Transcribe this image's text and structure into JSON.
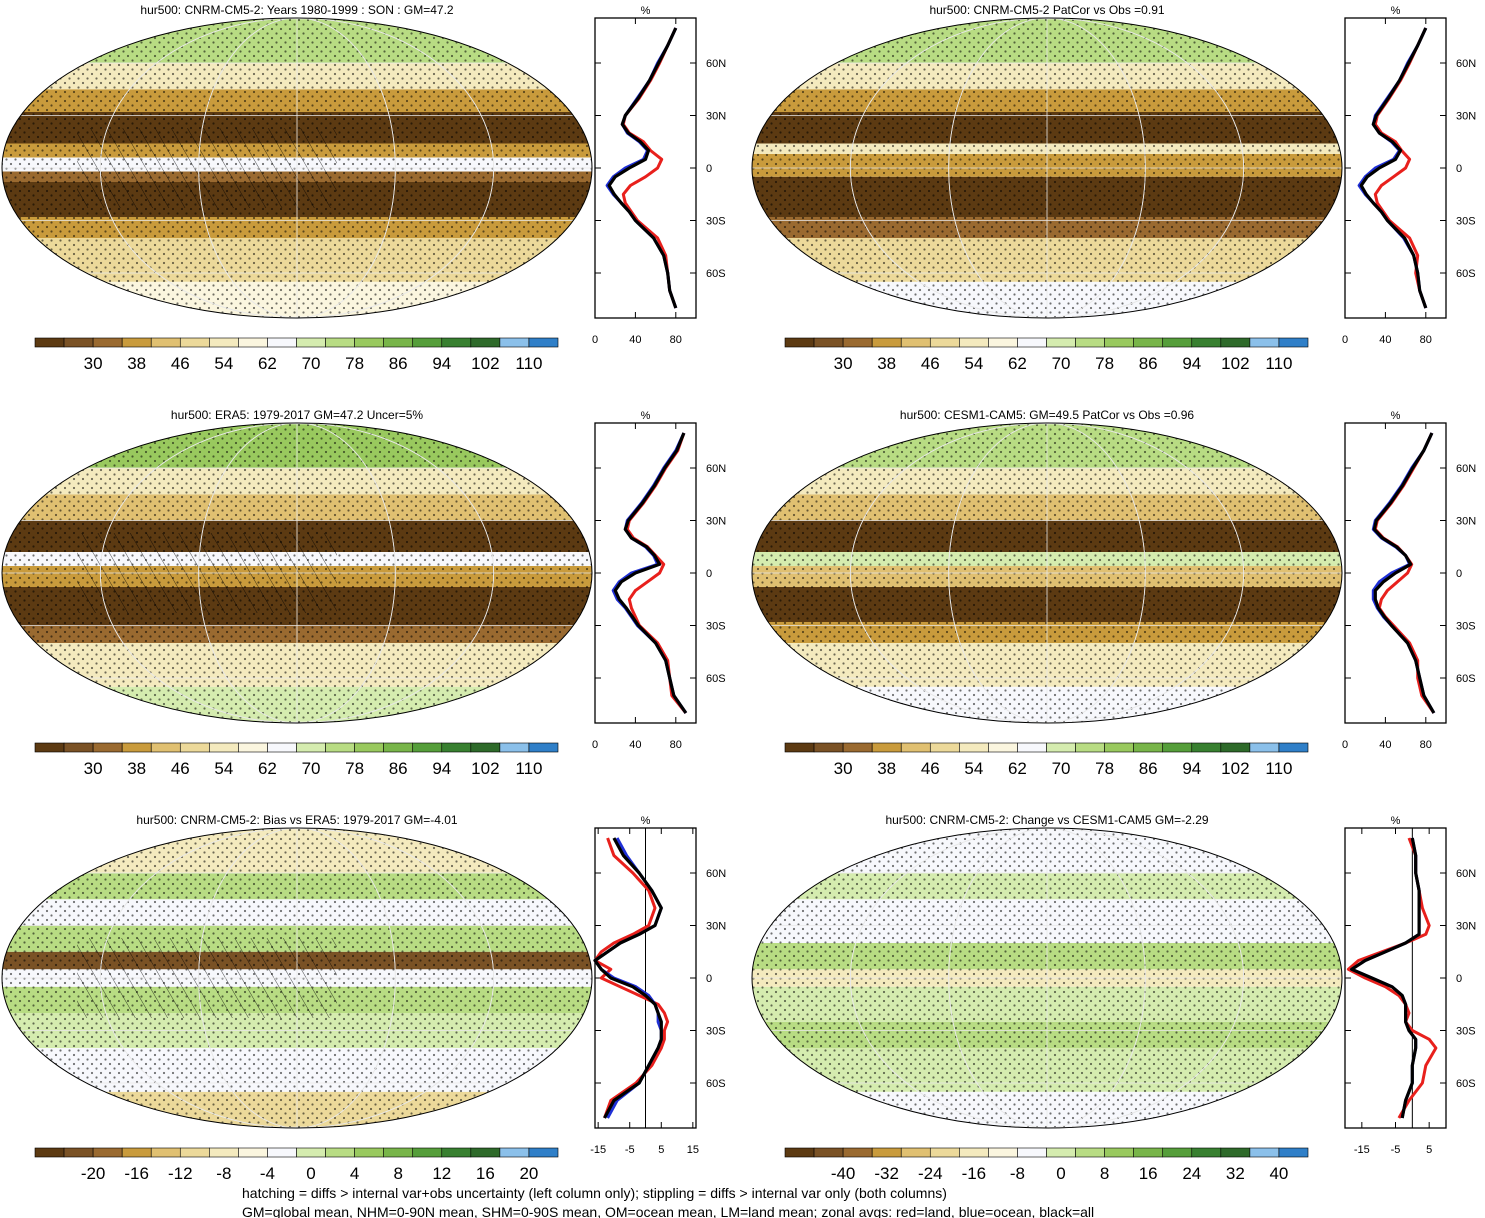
{
  "figure": {
    "footer": [
      "hatching = diffs > internal var+obs uncertainty (left column only); stippling = diffs > internal var only (both columns)",
      "GM=global mean, NHM=0-90N mean, SHM=0-90S mean, OM=ocean mean, LM=land mean; zonal avgs: red=land, blue=ocean, black=all"
    ]
  },
  "colors": {
    "land": "#e8201c",
    "ocean": "#1f2fd6",
    "all": "#000000",
    "colorbar": [
      "#5c3a12",
      "#7a5225",
      "#9a6a30",
      "#c99b3c",
      "#e0c071",
      "#ecd99a",
      "#f4eabe",
      "#fbf6df",
      "#f7f8fc",
      "#d5ecaf",
      "#b8dc83",
      "#99c95e",
      "#78b549",
      "#559e3a",
      "#388030",
      "#2e6a2a",
      "#8bc0ea",
      "#2f7fc8"
    ]
  },
  "panels": [
    {
      "title": "hur500: CNRM-CM5-2: Years 1980-1999 : SON : GM=47.2",
      "colorbar_labels": [
        "30",
        "38",
        "46",
        "54",
        "62",
        "70",
        "78",
        "86",
        "94",
        "102",
        "110"
      ],
      "zonal_unit": "%",
      "zonal_xticks": [
        "0",
        "40",
        "80"
      ]
    },
    {
      "title": "hur500: CNRM-CM5-2 PatCor vs Obs =0.91",
      "colorbar_labels": [
        "30",
        "38",
        "46",
        "54",
        "62",
        "70",
        "78",
        "86",
        "94",
        "102",
        "110"
      ],
      "zonal_unit": "%",
      "zonal_xticks": [
        "0",
        "40",
        "80"
      ]
    },
    {
      "title": "hur500: ERA5: 1979-2017 GM=47.2 Uncer=5%",
      "colorbar_labels": [
        "30",
        "38",
        "46",
        "54",
        "62",
        "70",
        "78",
        "86",
        "94",
        "102",
        "110"
      ],
      "zonal_unit": "%",
      "zonal_xticks": [
        "0",
        "40",
        "80"
      ]
    },
    {
      "title": "hur500: CESM1-CAM5: GM=49.5 PatCor vs Obs =0.96",
      "colorbar_labels": [
        "30",
        "38",
        "46",
        "54",
        "62",
        "70",
        "78",
        "86",
        "94",
        "102",
        "110"
      ],
      "zonal_unit": "%",
      "zonal_xticks": [
        "0",
        "40",
        "80"
      ]
    },
    {
      "title": "hur500: CNRM-CM5-2: Bias vs ERA5: 1979-2017  GM=-4.01",
      "colorbar_labels": [
        "-20",
        "-16",
        "-12",
        "-8",
        "-4",
        "0",
        "4",
        "8",
        "12",
        "16",
        "20"
      ],
      "zonal_unit": "%",
      "zonal_xticks": [
        "-15",
        "-5",
        "5",
        "15"
      ]
    },
    {
      "title": "hur500: CNRM-CM5-2: Change vs CESM1-CAM5 GM=-2.29",
      "colorbar_labels": [
        "-40",
        "-32",
        "-24",
        "-16",
        "-8",
        "0",
        "8",
        "16",
        "24",
        "32",
        "40"
      ],
      "zonal_unit": "%",
      "zonal_xticks": [
        "-15",
        "-5",
        "5"
      ]
    }
  ],
  "chart_data": [
    {
      "type": "line",
      "title": "hur500: CNRM-CM5-2: Years 1980-1999 : SON : GM=47.2",
      "xlabel": "%",
      "ylabel": "",
      "xlim": [
        0,
        100
      ],
      "ylim": [
        -85,
        85
      ],
      "y_ticks": [
        "60N",
        "30N",
        "0",
        "30S",
        "60S"
      ],
      "x_ticks": [
        0,
        40,
        80
      ],
      "lat": [
        80,
        70,
        60,
        50,
        40,
        30,
        25,
        20,
        15,
        10,
        5,
        0,
        -5,
        -10,
        -15,
        -20,
        -25,
        -30,
        -40,
        -50,
        -60,
        -70,
        -80
      ],
      "series": [
        {
          "name": "land",
          "values": [
            80,
            72,
            64,
            55,
            44,
            30,
            28,
            34,
            48,
            55,
            66,
            62,
            50,
            35,
            28,
            30,
            36,
            42,
            62,
            70,
            72,
            74,
            80
          ]
        },
        {
          "name": "ocean",
          "values": [
            80,
            72,
            62,
            54,
            42,
            30,
            27,
            32,
            44,
            52,
            48,
            30,
            18,
            12,
            18,
            26,
            34,
            40,
            58,
            68,
            72,
            74,
            80
          ]
        },
        {
          "name": "all",
          "values": [
            80,
            72,
            63,
            54,
            43,
            30,
            27,
            33,
            45,
            53,
            50,
            34,
            20,
            14,
            19,
            26,
            34,
            40,
            58,
            68,
            72,
            74,
            80
          ]
        }
      ]
    },
    {
      "type": "line",
      "title": "hur500: CNRM-CM5-2 PatCor vs Obs =0.91",
      "xlabel": "%",
      "ylabel": "",
      "xlim": [
        0,
        100
      ],
      "ylim": [
        -85,
        85
      ],
      "y_ticks": [
        "60N",
        "30N",
        "0",
        "30S",
        "60S"
      ],
      "x_ticks": [
        0,
        40,
        80
      ],
      "lat": [
        80,
        70,
        60,
        50,
        40,
        30,
        25,
        20,
        15,
        10,
        5,
        0,
        -5,
        -10,
        -15,
        -20,
        -25,
        -30,
        -40,
        -50,
        -60,
        -70,
        -80
      ],
      "series": [
        {
          "name": "land",
          "values": [
            80,
            72,
            64,
            55,
            44,
            32,
            30,
            36,
            50,
            56,
            64,
            60,
            48,
            36,
            30,
            32,
            38,
            44,
            64,
            72,
            70,
            74,
            80
          ]
        },
        {
          "name": "ocean",
          "values": [
            80,
            72,
            62,
            54,
            42,
            30,
            28,
            34,
            46,
            54,
            48,
            30,
            20,
            14,
            20,
            28,
            36,
            42,
            58,
            68,
            72,
            74,
            80
          ]
        },
        {
          "name": "all",
          "values": [
            80,
            72,
            63,
            54,
            43,
            31,
            28,
            34,
            47,
            55,
            50,
            34,
            22,
            16,
            21,
            28,
            36,
            42,
            59,
            68,
            72,
            74,
            80
          ]
        }
      ]
    },
    {
      "type": "line",
      "title": "hur500: ERA5: 1979-2017 GM=47.2 Uncer=5%",
      "xlabel": "%",
      "ylabel": "",
      "xlim": [
        0,
        100
      ],
      "ylim": [
        -85,
        85
      ],
      "y_ticks": [
        "60N",
        "30N",
        "0",
        "30S",
        "60S"
      ],
      "x_ticks": [
        0,
        40,
        80
      ],
      "lat": [
        80,
        70,
        60,
        50,
        40,
        30,
        25,
        20,
        15,
        10,
        5,
        0,
        -5,
        -10,
        -15,
        -20,
        -25,
        -30,
        -40,
        -50,
        -60,
        -70,
        -80
      ],
      "series": [
        {
          "name": "land",
          "values": [
            88,
            82,
            70,
            60,
            48,
            34,
            32,
            38,
            52,
            60,
            68,
            64,
            52,
            40,
            34,
            36,
            40,
            44,
            62,
            72,
            74,
            76,
            90
          ]
        },
        {
          "name": "ocean",
          "values": [
            88,
            80,
            68,
            58,
            46,
            32,
            30,
            36,
            50,
            58,
            62,
            36,
            24,
            18,
            22,
            30,
            36,
            42,
            60,
            70,
            74,
            78,
            90
          ]
        },
        {
          "name": "all",
          "values": [
            88,
            81,
            69,
            59,
            47,
            33,
            30,
            36,
            51,
            59,
            64,
            40,
            26,
            20,
            24,
            31,
            37,
            43,
            60,
            70,
            74,
            78,
            90
          ]
        }
      ]
    },
    {
      "type": "line",
      "title": "hur500: CESM1-CAM5: GM=49.5 PatCor vs Obs =0.96",
      "xlabel": "%",
      "ylabel": "",
      "xlim": [
        0,
        100
      ],
      "ylim": [
        -85,
        85
      ],
      "y_ticks": [
        "60N",
        "30N",
        "0",
        "30S",
        "60S"
      ],
      "x_ticks": [
        0,
        40,
        80
      ],
      "lat": [
        80,
        70,
        60,
        50,
        40,
        30,
        25,
        20,
        15,
        10,
        5,
        0,
        -5,
        -10,
        -15,
        -20,
        -25,
        -30,
        -40,
        -50,
        -60,
        -70,
        -80
      ],
      "series": [
        {
          "name": "land",
          "values": [
            86,
            78,
            68,
            58,
            46,
            32,
            30,
            38,
            52,
            60,
            66,
            62,
            52,
            42,
            36,
            34,
            40,
            48,
            64,
            72,
            72,
            76,
            88
          ]
        },
        {
          "name": "ocean",
          "values": [
            86,
            78,
            66,
            56,
            44,
            30,
            28,
            36,
            50,
            60,
            64,
            46,
            34,
            28,
            28,
            32,
            38,
            46,
            62,
            70,
            74,
            78,
            88
          ]
        },
        {
          "name": "all",
          "values": [
            86,
            78,
            67,
            57,
            45,
            31,
            29,
            37,
            51,
            60,
            65,
            50,
            38,
            30,
            30,
            33,
            39,
            46,
            62,
            70,
            74,
            78,
            88
          ]
        }
      ]
    },
    {
      "type": "line",
      "title": "hur500: CNRM-CM5-2: Bias vs ERA5: 1979-2017  GM=-4.01",
      "xlabel": "%",
      "ylabel": "",
      "xlim": [
        -16,
        16
      ],
      "ylim": [
        -85,
        85
      ],
      "y_ticks": [
        "60N",
        "30N",
        "0",
        "30S",
        "60S"
      ],
      "x_ticks": [
        -15,
        -5,
        5,
        15
      ],
      "lat": [
        80,
        70,
        60,
        50,
        40,
        30,
        25,
        20,
        15,
        10,
        5,
        0,
        -5,
        -10,
        -15,
        -20,
        -25,
        -30,
        -35,
        -40,
        -50,
        -60,
        -70,
        -80
      ],
      "series": [
        {
          "name": "land",
          "values": [
            -12,
            -10,
            -4,
            1,
            3,
            1,
            -4,
            -10,
            -14,
            -16,
            -11,
            -14,
            -8,
            -2,
            4,
            6,
            7,
            6,
            6,
            5,
            2,
            -3,
            -11,
            -13
          ]
        },
        {
          "name": "ocean",
          "values": [
            -9,
            -6,
            -2,
            2,
            5,
            3,
            -2,
            -8,
            -12,
            -16,
            -14,
            -10,
            -3,
            1,
            3,
            4,
            4,
            5,
            5,
            4,
            1,
            -2,
            -9,
            -12
          ]
        },
        {
          "name": "all",
          "values": [
            -10,
            -7,
            -2,
            2,
            5,
            3,
            -2,
            -8,
            -12,
            -16,
            -14,
            -11,
            -4,
            0,
            3,
            4,
            5,
            5,
            5,
            4,
            1,
            -2,
            -10,
            -13
          ]
        }
      ]
    },
    {
      "type": "line",
      "title": "hur500: CNRM-CM5-2: Change vs CESM1-CAM5 GM=-2.29",
      "xlabel": "%",
      "ylabel": "",
      "xlim": [
        -20,
        10
      ],
      "ylim": [
        -85,
        85
      ],
      "y_ticks": [
        "60N",
        "30N",
        "0",
        "30S",
        "60S"
      ],
      "x_ticks": [
        -15,
        -5,
        5
      ],
      "lat": [
        80,
        70,
        60,
        50,
        40,
        30,
        25,
        20,
        15,
        10,
        5,
        0,
        -5,
        -10,
        -15,
        -20,
        -25,
        -30,
        -35,
        -40,
        -50,
        -60,
        -70,
        -80
      ],
      "series": [
        {
          "name": "land",
          "values": [
            -1,
            1,
            1,
            2,
            3,
            5,
            4,
            -2,
            -9,
            -16,
            -19,
            -14,
            -8,
            -4,
            -2,
            -1,
            -2,
            0,
            5,
            7,
            4,
            3,
            -1,
            -4
          ]
        },
        {
          "name": "ocean",
          "values": [
            0,
            1,
            1,
            2,
            2,
            2,
            2,
            -2,
            -8,
            -14,
            -18,
            -12,
            -6,
            -3,
            -2,
            -2,
            -2,
            -1,
            1,
            1,
            0,
            0,
            -2,
            -3
          ]
        },
        {
          "name": "all",
          "values": [
            0,
            1,
            1,
            2,
            2,
            2,
            2,
            -2,
            -8,
            -14,
            -18,
            -12,
            -6,
            -3,
            -2,
            -2,
            -2,
            -1,
            1,
            1,
            0,
            0,
            -2,
            -3
          ]
        }
      ]
    }
  ]
}
